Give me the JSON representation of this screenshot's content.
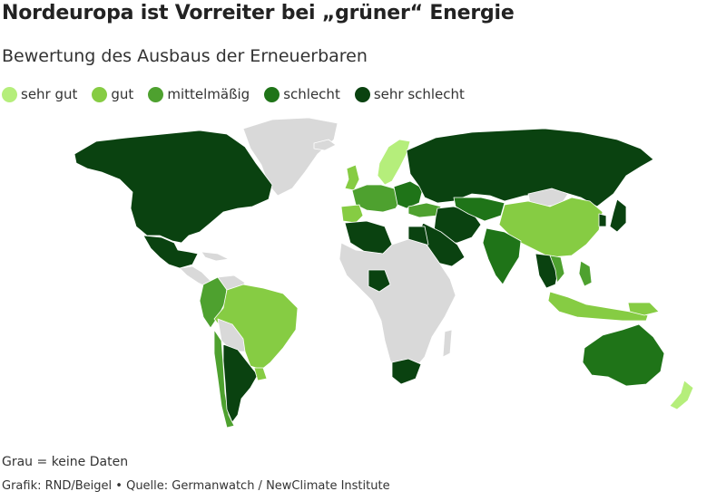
{
  "title": "Nordeuropa ist Vorreiter bei „grüner“ Energie",
  "subtitle": "Bewertung des Ausbaus der Erneuerbaren",
  "legend": [
    {
      "label": "sehr gut",
      "color": "#b5ee7b"
    },
    {
      "label": "gut",
      "color": "#86cc43"
    },
    {
      "label": "mittelmäßig",
      "color": "#4ea12f"
    },
    {
      "label": "schlecht",
      "color": "#1f7418"
    },
    {
      "label": "sehr schlecht",
      "color": "#0a4210"
    }
  ],
  "nodata_color": "#d9d9d9",
  "note": "Grau = keine Daten",
  "credit": "Grafik: RND/Beigel • Quelle: Germanwatch / NewClimate Institute"
}
